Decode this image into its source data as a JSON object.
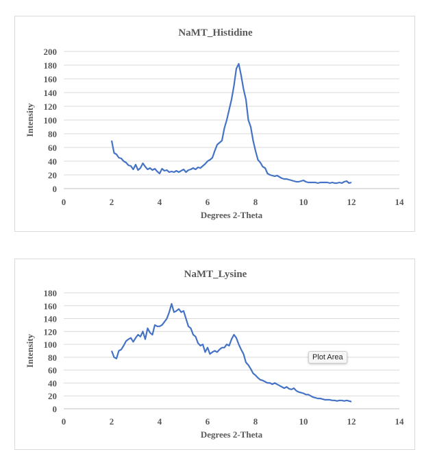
{
  "chart_data": [
    {
      "type": "line",
      "title": "NaMT_Histidine",
      "xlabel": "Degrees 2-Theta",
      "ylabel": "Intensity",
      "xlim": [
        0,
        14
      ],
      "ylim": [
        0,
        200
      ],
      "xticks": [
        0,
        2,
        4,
        6,
        8,
        10,
        12,
        14
      ],
      "yticks": [
        0,
        20,
        40,
        60,
        80,
        100,
        120,
        140,
        160,
        180,
        200
      ],
      "grid": "horizontal",
      "line_color": "#4472c4",
      "x_start": 2.0,
      "x_step": 0.1,
      "values": [
        70,
        52,
        50,
        45,
        44,
        40,
        38,
        34,
        33,
        28,
        35,
        27,
        30,
        37,
        32,
        28,
        30,
        27,
        29,
        25,
        22,
        29,
        26,
        27,
        24,
        25,
        24,
        26,
        24,
        26,
        28,
        24,
        27,
        28,
        30,
        28,
        31,
        30,
        33,
        36,
        40,
        42,
        45,
        55,
        64,
        67,
        70,
        88,
        100,
        115,
        130,
        150,
        175,
        182,
        165,
        145,
        130,
        100,
        90,
        70,
        55,
        42,
        38,
        32,
        30,
        22,
        20,
        19,
        18,
        19,
        17,
        15,
        14,
        14,
        13,
        12,
        11,
        10,
        10,
        11,
        12,
        10,
        9,
        9,
        9,
        9,
        8,
        9,
        9,
        9,
        9,
        8,
        9,
        8,
        8,
        9,
        8,
        10,
        11,
        8,
        9
      ]
    },
    {
      "type": "line",
      "title": "NaMT_Lysine",
      "xlabel": "Degrees 2-Theta",
      "ylabel": "Intensity",
      "xlim": [
        0,
        14
      ],
      "ylim": [
        0,
        180
      ],
      "xticks": [
        0,
        2,
        4,
        6,
        8,
        10,
        12,
        14
      ],
      "yticks": [
        0,
        20,
        40,
        60,
        80,
        100,
        120,
        140,
        160,
        180
      ],
      "grid": "horizontal",
      "line_color": "#4472c4",
      "x_start": 2.0,
      "x_step": 0.1,
      "values": [
        90,
        80,
        78,
        90,
        92,
        98,
        105,
        108,
        110,
        104,
        110,
        115,
        112,
        120,
        108,
        125,
        118,
        115,
        130,
        128,
        128,
        130,
        135,
        140,
        150,
        163,
        150,
        152,
        155,
        150,
        152,
        140,
        128,
        125,
        115,
        112,
        102,
        98,
        100,
        88,
        95,
        85,
        88,
        90,
        88,
        92,
        95,
        95,
        100,
        98,
        108,
        115,
        110,
        100,
        92,
        85,
        72,
        68,
        62,
        55,
        52,
        48,
        45,
        44,
        42,
        40,
        40,
        38,
        40,
        38,
        36,
        34,
        32,
        34,
        31,
        30,
        32,
        28,
        26,
        25,
        24,
        22,
        22,
        20,
        18,
        17,
        16,
        16,
        15,
        14,
        14,
        14,
        13,
        13,
        12,
        13,
        13,
        12,
        13,
        12,
        11
      ]
    }
  ],
  "tooltip": "Plot Area"
}
